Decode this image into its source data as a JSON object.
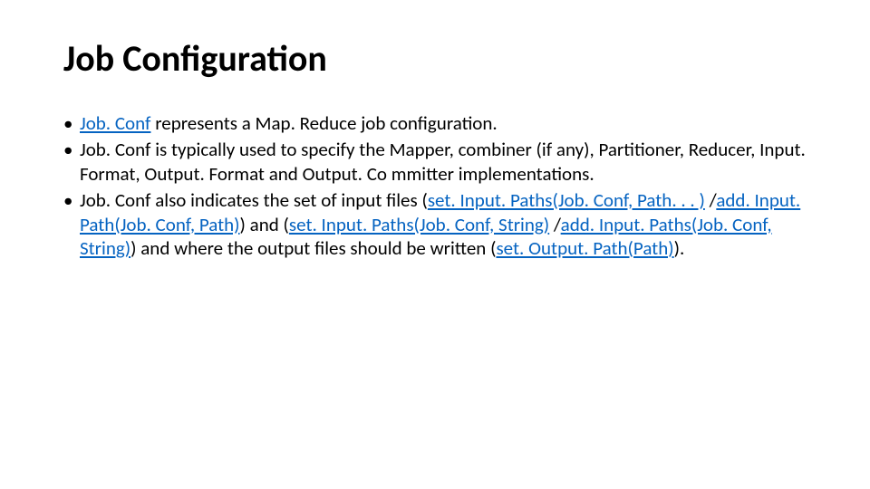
{
  "colors": {
    "background": "#ffffff",
    "text": "#000000",
    "link": "#0563c1"
  },
  "typography": {
    "title_fontsize_pt": 40,
    "title_weight": 700,
    "body_fontsize_pt": 21,
    "font_family": "Calibri"
  },
  "title": "Job Configuration",
  "bullets": [
    {
      "segments": [
        {
          "text": "Job. Conf",
          "link": true
        },
        {
          "text": " represents a Map. Reduce job configuration.",
          "link": false
        }
      ]
    },
    {
      "segments": [
        {
          "text": "Job. Conf is typically used to specify the Mapper, combiner (if any), Partitioner, Reducer, Input. Format, Output. Format and Output. Co mmitter implementations.",
          "link": false
        }
      ]
    },
    {
      "segments": [
        {
          "text": "Job. Conf also indicates the set of input files (",
          "link": false
        },
        {
          "text": "set. Input. Paths(Job. Conf, Path. . . )",
          "link": true
        },
        {
          "text": " /",
          "link": false
        },
        {
          "text": "add. Input. Path(Job. Conf, Path)",
          "link": true
        },
        {
          "text": ") and (",
          "link": false
        },
        {
          "text": "set. Input. Paths(Job. Conf, String)",
          "link": true
        },
        {
          "text": " /",
          "link": false
        },
        {
          "text": "add. Input. Paths(Job. Conf, String)",
          "link": true
        },
        {
          "text": ") and where the output files should be written (",
          "link": false
        },
        {
          "text": "set. Output. Path(Path)",
          "link": true
        },
        {
          "text": ").",
          "link": false
        }
      ]
    }
  ]
}
